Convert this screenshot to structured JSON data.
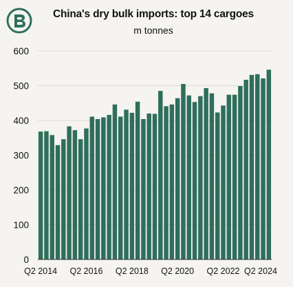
{
  "colors": {
    "bar": "#2f6e5c",
    "logo": "#2f6e5c",
    "grid": "#dcdbd7",
    "background": "#f5f4f1"
  },
  "logo": {
    "icon": "b-logo-icon"
  },
  "chart_data": {
    "type": "bar",
    "title": "China's dry bulk imports: top 14 cargoes",
    "subtitle": "m tonnes",
    "xlabel": "",
    "ylabel": "",
    "ylim": [
      0,
      600
    ],
    "yticks": [
      0,
      100,
      200,
      300,
      400,
      500,
      600
    ],
    "grid": true,
    "legend": "none",
    "x_tick_labels": [
      "Q2 2014",
      "Q2 2016",
      "Q2 2018",
      "Q2 2020",
      "Q2 2022",
      "Q2 2024"
    ],
    "x_tick_label_indices": [
      0,
      8,
      16,
      24,
      32,
      40
    ],
    "categories": [
      "Q2 2014",
      "Q3 2014",
      "Q4 2014",
      "Q1 2015",
      "Q2 2015",
      "Q3 2015",
      "Q4 2015",
      "Q1 2016",
      "Q2 2016",
      "Q3 2016",
      "Q4 2016",
      "Q1 2017",
      "Q2 2017",
      "Q3 2017",
      "Q4 2017",
      "Q1 2018",
      "Q2 2018",
      "Q3 2018",
      "Q4 2018",
      "Q1 2019",
      "Q2 2019",
      "Q3 2019",
      "Q4 2019",
      "Q1 2020",
      "Q2 2020",
      "Q3 2020",
      "Q4 2020",
      "Q1 2021",
      "Q2 2021",
      "Q3 2021",
      "Q4 2021",
      "Q1 2022",
      "Q2 2022",
      "Q3 2022",
      "Q4 2022",
      "Q1 2023",
      "Q2 2023",
      "Q3 2023",
      "Q4 2023",
      "Q1 2024",
      "Q2 2024"
    ],
    "values": [
      368,
      369,
      358,
      329,
      346,
      383,
      372,
      346,
      377,
      411,
      404,
      409,
      416,
      446,
      411,
      431,
      422,
      454,
      404,
      420,
      419,
      485,
      441,
      446,
      464,
      505,
      472,
      453,
      470,
      493,
      478,
      423,
      443,
      474,
      474,
      499,
      517,
      531,
      533,
      521,
      546
    ]
  }
}
